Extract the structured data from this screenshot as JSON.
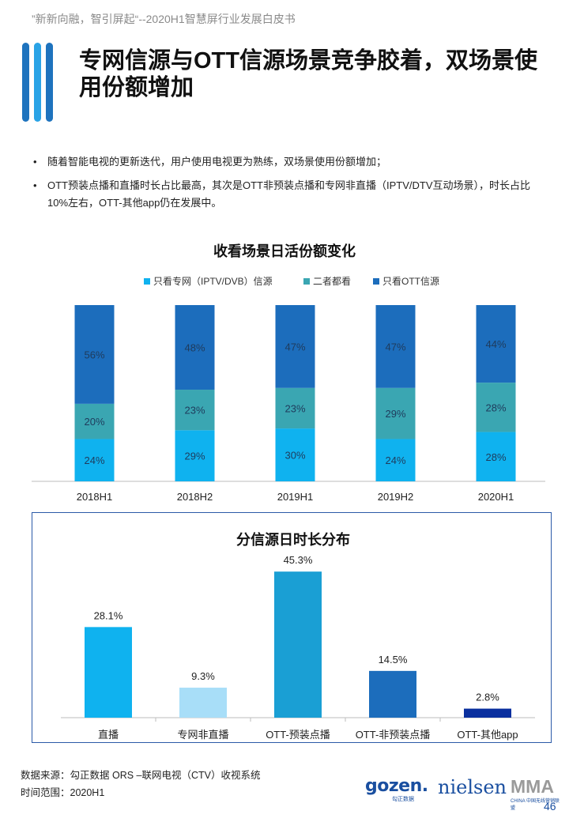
{
  "header": {
    "text": "”新新向融，智引屏起“--2020H1智慧屏行业发展白皮书"
  },
  "title": "专网信源与OTT信源场景竞争胶着，双场景使用份额增加",
  "bullets": [
    "随着智能电视的更新迭代，用户使用电视更为熟练，双场景使用份额增加；",
    "OTT预装点播和直播时长占比最高，其次是OTT非预装点播和专网非直播（IPTV/DTV互动场景），时长占比10%左右，OTT-其他app仍在发展中。"
  ],
  "chart_data": [
    {
      "type": "bar",
      "stacked": true,
      "title": "收看场景日活份额变化",
      "legend_position": "top",
      "categories": [
        "2018H1",
        "2018H2",
        "2019H1",
        "2019H2",
        "2020H1"
      ],
      "series": [
        {
          "name": "只看专网（IPTV/DVB）信源",
          "values": [
            24,
            29,
            30,
            24,
            28
          ],
          "labels": [
            "24%",
            "29%",
            "30%",
            "24%",
            "28%"
          ],
          "color": "#0fb2ef"
        },
        {
          "name": "二者都看",
          "values": [
            20,
            23,
            23,
            29,
            28
          ],
          "labels": [
            "20%",
            "23%",
            "23%",
            "29%",
            "28%"
          ],
          "color": "#3aa6b2"
        },
        {
          "name": "只看OTT信源",
          "values": [
            56,
            48,
            47,
            47,
            44
          ],
          "labels": [
            "56%",
            "48%",
            "47%",
            "47%",
            "44%"
          ],
          "color": "#1c6dbc"
        }
      ],
      "ylim": [
        0,
        100
      ],
      "grid": false
    },
    {
      "type": "bar",
      "title": "分信源日时长分布",
      "categories": [
        "直播",
        "专网非直播",
        "OTT-预装点播",
        "OTT-非预装点播",
        "OTT-其他app"
      ],
      "values": [
        28.1,
        9.3,
        45.3,
        14.5,
        2.8
      ],
      "labels": [
        "28.1%",
        "9.3%",
        "45.3%",
        "14.5%",
        "2.8%"
      ],
      "colors": [
        "#0fb2ef",
        "#a8def8",
        "#1a9fd4",
        "#1c6dbc",
        "#0a2f9e"
      ],
      "ylim": [
        0,
        50
      ],
      "grid": false
    }
  ],
  "footer": {
    "source": "数据来源：勾正数据 ORS –联网电视（CTV）收视系统",
    "time_range": "时间范围：2020H1"
  },
  "logos": {
    "gozen": "gozen.",
    "gozen_sub": "勾正数据",
    "nielsen": "nielsen",
    "mma": "MMA",
    "mma_sub": "CHINA 中国无线营销联盟"
  },
  "page_number": "46"
}
